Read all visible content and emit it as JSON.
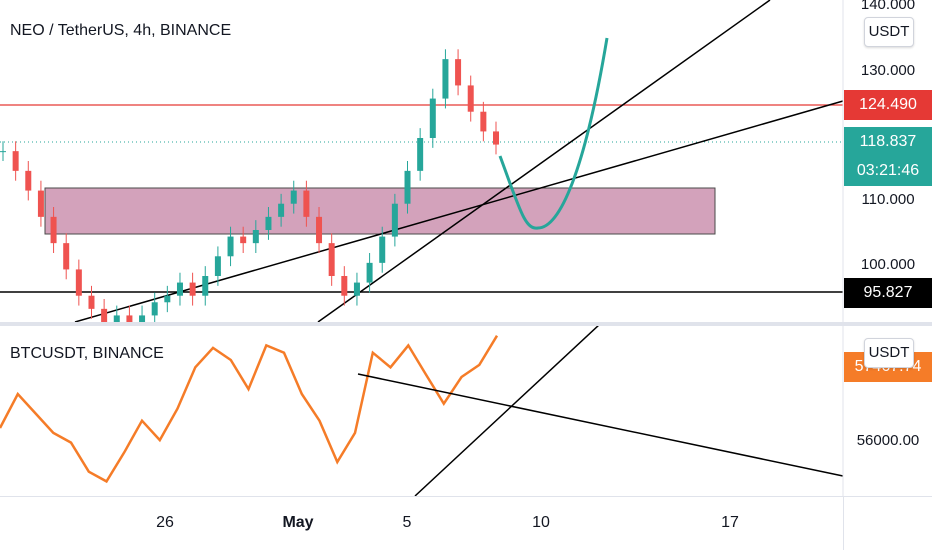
{
  "main_pane": {
    "title": "NEO / TetherUS, 4h, BINANCE",
    "currency": "USDT",
    "price_labels": [
      "140.000",
      "130.000",
      "110.000",
      "100.000"
    ],
    "resistance_badge": "124.490",
    "current_price": "118.837",
    "countdown": "03:21:46",
    "support_badge": "95.827",
    "colors": {
      "resistance": "#e53935",
      "current": "#26a69a",
      "support": "#000000",
      "zone": "#b5648e",
      "projection": "#26a69a"
    }
  },
  "sub_pane": {
    "title": "BTCUSDT, BINANCE",
    "currency": "USDT",
    "price_labels": [
      "56000.00"
    ],
    "price_badge": "57467.74",
    "line_color": "#f57c28"
  },
  "time_axis": {
    "labels": [
      "26",
      "May",
      "5",
      "10",
      "17"
    ]
  },
  "chart_data": [
    {
      "type": "line",
      "title": "NEO / TetherUS, 4h, BINANCE",
      "ylabel": "USDT",
      "ylim": [
        92,
        141
      ],
      "x_ticks": [
        "26",
        "May",
        "5",
        "10",
        "17"
      ],
      "y_ticks": [
        100,
        110,
        130,
        140
      ],
      "levels": {
        "resistance": 124.49,
        "current": 118.837,
        "support": 95.827
      },
      "zone": [
        104.5,
        111.5
      ],
      "series": [
        {
          "values": [
            118,
            115,
            112,
            108,
            104,
            100,
            96,
            94,
            92,
            93,
            92,
            93,
            95,
            96,
            98,
            96,
            99,
            102,
            105,
            104,
            106,
            108,
            110,
            112,
            108,
            104,
            99,
            96,
            98,
            101,
            105,
            110,
            115,
            120,
            126,
            132,
            128,
            124,
            121,
            119
          ]
        }
      ]
    },
    {
      "type": "line",
      "title": "BTCUSDT, BINANCE",
      "ylabel": "USDT",
      "y_ticks": [
        56000
      ],
      "series": [
        {
          "values": [
            54800,
            56200,
            55400,
            54600,
            54200,
            53000,
            52600,
            53800,
            55100,
            54300,
            55600,
            57300,
            58100,
            57600,
            56400,
            58200,
            57900,
            56200,
            55100,
            53400,
            54600,
            57900,
            57300,
            58200,
            57000,
            55800,
            56900,
            57400,
            58600
          ]
        }
      ]
    }
  ]
}
